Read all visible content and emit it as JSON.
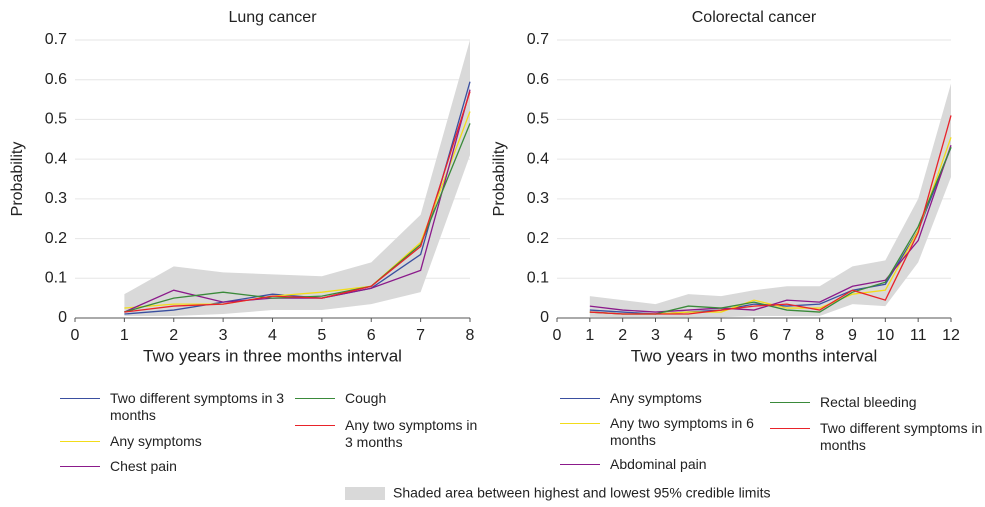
{
  "chart_data": [
    {
      "type": "line",
      "title": "Lung cancer",
      "x_label": "Two years in three months interval",
      "y_label": "Probability",
      "x": [
        1,
        2,
        3,
        4,
        5,
        6,
        7,
        8
      ],
      "xlim": [
        0,
        8
      ],
      "xticks": [
        0,
        1,
        2,
        3,
        4,
        5,
        6,
        7,
        8
      ],
      "ylim": [
        0,
        0.7
      ],
      "yticks": [
        0,
        0.1,
        0.2,
        0.3,
        0.4,
        0.5,
        0.6,
        0.7
      ],
      "grid": true,
      "band": {
        "color": "#d9d9d9",
        "upper": [
          0.06,
          0.13,
          0.115,
          0.11,
          0.105,
          0.14,
          0.26,
          0.7
        ],
        "lower": [
          0.005,
          0.005,
          0.01,
          0.02,
          0.02,
          0.035,
          0.065,
          0.41
        ]
      },
      "series": [
        {
          "name": "Two different symptoms in 3 months",
          "color": "#3a4fa0",
          "values": [
            0.01,
            0.02,
            0.04,
            0.06,
            0.05,
            0.075,
            0.16,
            0.595
          ]
        },
        {
          "name": "Any symptoms",
          "color": "#f2dc1a",
          "values": [
            0.025,
            0.035,
            0.035,
            0.055,
            0.065,
            0.08,
            0.19,
            0.52
          ]
        },
        {
          "name": "Chest pain",
          "color": "#8b1a8b",
          "values": [
            0.015,
            0.07,
            0.04,
            0.05,
            0.05,
            0.075,
            0.12,
            0.575
          ]
        },
        {
          "name": "Cough",
          "color": "#3a8a3a",
          "values": [
            0.015,
            0.05,
            0.065,
            0.05,
            0.055,
            0.08,
            0.185,
            0.49
          ]
        },
        {
          "name": "Any two symptoms in 3 months",
          "color": "#e8232a",
          "values": [
            0.015,
            0.03,
            0.035,
            0.055,
            0.05,
            0.08,
            0.18,
            0.57
          ]
        }
      ]
    },
    {
      "type": "line",
      "title": "Colorectal cancer",
      "x_label": "Two years in two months interval",
      "y_label": "Probability",
      "x": [
        1,
        2,
        3,
        4,
        5,
        6,
        7,
        8,
        9,
        10,
        11,
        12
      ],
      "xlim": [
        0,
        12
      ],
      "xticks": [
        0,
        1,
        2,
        3,
        4,
        5,
        6,
        7,
        8,
        9,
        10,
        11,
        12
      ],
      "ylim": [
        0,
        0.7
      ],
      "yticks": [
        0,
        0.1,
        0.2,
        0.3,
        0.4,
        0.5,
        0.6,
        0.7
      ],
      "grid": true,
      "band": {
        "color": "#d9d9d9",
        "upper": [
          0.055,
          0.045,
          0.035,
          0.06,
          0.055,
          0.07,
          0.08,
          0.08,
          0.13,
          0.145,
          0.3,
          0.59
        ],
        "lower": [
          0.003,
          0.002,
          0.002,
          0.002,
          0.002,
          0.005,
          0.005,
          0.005,
          0.035,
          0.03,
          0.14,
          0.355
        ]
      },
      "series": [
        {
          "name": "Any symptoms",
          "color": "#3a4fa0",
          "values": [
            0.02,
            0.015,
            0.01,
            0.015,
            0.02,
            0.035,
            0.03,
            0.035,
            0.07,
            0.085,
            0.22,
            0.43
          ]
        },
        {
          "name": "Any two symptoms in 6 months",
          "color": "#f2dc1a",
          "values": [
            0.015,
            0.01,
            0.01,
            0.015,
            0.015,
            0.045,
            0.025,
            0.025,
            0.06,
            0.07,
            0.22,
            0.455
          ]
        },
        {
          "name": "Abdominal pain",
          "color": "#8b1a8b",
          "values": [
            0.03,
            0.02,
            0.015,
            0.02,
            0.025,
            0.02,
            0.045,
            0.04,
            0.08,
            0.095,
            0.195,
            0.435
          ]
        },
        {
          "name": "Rectal bleeding",
          "color": "#3a8a3a",
          "values": [
            0.015,
            0.01,
            0.01,
            0.03,
            0.025,
            0.04,
            0.02,
            0.015,
            0.065,
            0.09,
            0.23,
            0.43
          ]
        },
        {
          "name": "Two different symptoms in 6 months",
          "color": "#e8232a",
          "values": [
            0.015,
            0.01,
            0.01,
            0.01,
            0.02,
            0.03,
            0.035,
            0.02,
            0.07,
            0.045,
            0.215,
            0.51
          ]
        }
      ]
    }
  ],
  "footnote": "Shaded area between highest and lowest 95% credible limits"
}
